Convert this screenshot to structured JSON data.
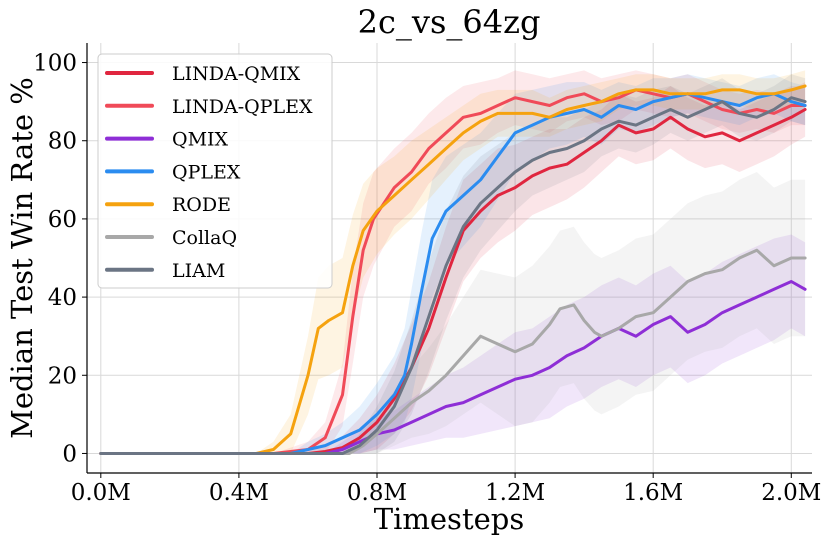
{
  "chart_data": {
    "type": "line",
    "title": "2c_vs_64zg",
    "xlabel": "Timesteps",
    "ylabel": "Median Test Win Rate %",
    "xlim": [
      -0.04,
      2.06
    ],
    "ylim": [
      -5,
      105
    ],
    "xticks": [
      0,
      0.4,
      0.8,
      1.2,
      1.6,
      2.0
    ],
    "xtick_labels": [
      "0.0M",
      "0.4M",
      "0.8M",
      "1.2M",
      "1.6M",
      "2.0M"
    ],
    "yticks": [
      0,
      20,
      40,
      60,
      80,
      100
    ],
    "ytick_labels": [
      "0",
      "20",
      "40",
      "60",
      "80",
      "100"
    ],
    "grid": true,
    "legend_position": "top-left",
    "series": [
      {
        "name": "LINDA-QMIX",
        "color": "#e0263f",
        "x": [
          0,
          0.5,
          0.6,
          0.65,
          0.7,
          0.75,
          0.8,
          0.85,
          0.9,
          0.95,
          1.0,
          1.05,
          1.1,
          1.15,
          1.2,
          1.25,
          1.3,
          1.35,
          1.4,
          1.45,
          1.5,
          1.55,
          1.6,
          1.65,
          1.7,
          1.75,
          1.8,
          1.85,
          1.9,
          1.95,
          2.0,
          2.04
        ],
        "y": [
          0,
          0,
          0,
          0.5,
          1.5,
          4,
          8,
          14,
          22,
          32,
          45,
          57,
          62,
          66,
          68,
          71,
          73,
          74,
          77,
          80,
          84,
          82,
          83,
          86,
          83,
          81,
          82,
          80,
          82,
          84,
          86,
          88
        ],
        "band": [
          0,
          0,
          1,
          2,
          3,
          5,
          7,
          9,
          11,
          12,
          13,
          13,
          12,
          12,
          11,
          10,
          10,
          9,
          9,
          8,
          8,
          8,
          8,
          8,
          8,
          8,
          8,
          8,
          8,
          8,
          7,
          7
        ]
      },
      {
        "name": "LINDA-QPLEX",
        "color": "#f04a58",
        "x": [
          0,
          0.5,
          0.6,
          0.65,
          0.7,
          0.73,
          0.76,
          0.79,
          0.82,
          0.85,
          0.9,
          0.95,
          1.0,
          1.05,
          1.1,
          1.15,
          1.2,
          1.25,
          1.3,
          1.35,
          1.4,
          1.45,
          1.5,
          1.55,
          1.6,
          1.65,
          1.7,
          1.75,
          1.8,
          1.85,
          1.9,
          1.95,
          2.0,
          2.04
        ],
        "y": [
          0,
          0,
          1,
          4,
          15,
          35,
          52,
          60,
          64,
          68,
          72,
          78,
          82,
          86,
          87,
          89,
          91,
          90,
          89,
          91,
          92,
          90,
          91,
          93,
          92,
          91,
          92,
          90,
          88,
          87,
          88,
          87,
          89,
          89
        ],
        "band": [
          0,
          0,
          2,
          4,
          8,
          12,
          12,
          12,
          11,
          10,
          10,
          9,
          9,
          8,
          8,
          7,
          7,
          7,
          7,
          6,
          6,
          6,
          6,
          5,
          5,
          5,
          5,
          5,
          5,
          5,
          5,
          5,
          5,
          5
        ]
      },
      {
        "name": "QMIX",
        "color": "#8e2ed6",
        "x": [
          0,
          0.65,
          0.7,
          0.75,
          0.8,
          0.85,
          0.9,
          0.95,
          1.0,
          1.05,
          1.1,
          1.15,
          1.2,
          1.25,
          1.3,
          1.35,
          1.4,
          1.45,
          1.5,
          1.55,
          1.6,
          1.65,
          1.7,
          1.75,
          1.8,
          1.85,
          1.9,
          1.95,
          2.0,
          2.04
        ],
        "y": [
          0,
          0,
          1,
          3,
          5,
          6,
          8,
          10,
          12,
          13,
          15,
          17,
          19,
          20,
          22,
          25,
          27,
          30,
          32,
          30,
          33,
          35,
          31,
          33,
          36,
          38,
          40,
          42,
          44,
          42
        ],
        "band": [
          0,
          0,
          2,
          3,
          4,
          5,
          6,
          7,
          8,
          9,
          10,
          11,
          12,
          12,
          13,
          13,
          13,
          13,
          13,
          13,
          13,
          13,
          13,
          13,
          13,
          13,
          13,
          13,
          12,
          12
        ]
      },
      {
        "name": "QPLEX",
        "color": "#2b8cf0",
        "x": [
          0,
          0.55,
          0.6,
          0.65,
          0.7,
          0.75,
          0.8,
          0.85,
          0.88,
          0.9,
          0.93,
          0.96,
          1.0,
          1.05,
          1.1,
          1.15,
          1.2,
          1.25,
          1.3,
          1.35,
          1.4,
          1.45,
          1.5,
          1.55,
          1.6,
          1.65,
          1.7,
          1.75,
          1.8,
          1.85,
          1.9,
          1.95,
          2.0,
          2.04
        ],
        "y": [
          0,
          0,
          1,
          2,
          4,
          6,
          10,
          15,
          20,
          28,
          42,
          55,
          62,
          66,
          70,
          76,
          82,
          84,
          86,
          87,
          88,
          86,
          89,
          88,
          90,
          91,
          92,
          91,
          90,
          89,
          91,
          92,
          90,
          89
        ],
        "band": [
          0,
          0,
          2,
          3,
          4,
          6,
          8,
          10,
          12,
          14,
          15,
          15,
          14,
          13,
          12,
          11,
          10,
          9,
          8,
          8,
          7,
          7,
          6,
          6,
          6,
          5,
          5,
          5,
          5,
          5,
          5,
          5,
          5,
          5
        ]
      },
      {
        "name": "RODE",
        "color": "#f5a20f",
        "x": [
          0,
          0.45,
          0.5,
          0.55,
          0.6,
          0.63,
          0.66,
          0.7,
          0.73,
          0.76,
          0.8,
          0.85,
          0.9,
          0.95,
          1.0,
          1.05,
          1.1,
          1.15,
          1.2,
          1.25,
          1.3,
          1.35,
          1.4,
          1.45,
          1.5,
          1.55,
          1.6,
          1.65,
          1.7,
          1.75,
          1.8,
          1.85,
          1.9,
          1.95,
          2.0,
          2.04
        ],
        "y": [
          0,
          0,
          1,
          5,
          20,
          32,
          34,
          36,
          48,
          57,
          62,
          66,
          70,
          74,
          78,
          82,
          85,
          87,
          87,
          87,
          86,
          88,
          89,
          90,
          92,
          93,
          93,
          92,
          92,
          92,
          93,
          93,
          92,
          92,
          93,
          94
        ],
        "band": [
          0,
          0,
          2,
          5,
          10,
          13,
          14,
          14,
          13,
          12,
          11,
          10,
          10,
          9,
          8,
          7,
          7,
          6,
          6,
          6,
          5,
          5,
          5,
          5,
          4,
          4,
          4,
          4,
          4,
          4,
          4,
          4,
          4,
          4,
          4,
          4
        ]
      },
      {
        "name": "CollaQ",
        "color": "#a8a8a8",
        "x": [
          0,
          0.72,
          0.76,
          0.8,
          0.85,
          0.9,
          0.95,
          1.0,
          1.05,
          1.1,
          1.15,
          1.2,
          1.25,
          1.3,
          1.33,
          1.37,
          1.4,
          1.43,
          1.45,
          1.5,
          1.55,
          1.6,
          1.65,
          1.7,
          1.75,
          1.8,
          1.85,
          1.9,
          1.95,
          2.0,
          2.04
        ],
        "y": [
          0,
          0,
          2,
          5,
          9,
          13,
          16,
          20,
          25,
          30,
          28,
          26,
          28,
          33,
          37,
          38,
          34,
          31,
          30,
          32,
          35,
          36,
          40,
          44,
          46,
          47,
          50,
          52,
          48,
          50,
          50
        ],
        "band": [
          0,
          0,
          3,
          5,
          7,
          9,
          11,
          13,
          15,
          17,
          18,
          19,
          20,
          20,
          20,
          20,
          20,
          20,
          20,
          20,
          20,
          20,
          20,
          20,
          20,
          20,
          20,
          20,
          20,
          20,
          20
        ]
      },
      {
        "name": "LIAM",
        "color": "#6b7584",
        "x": [
          0,
          0.7,
          0.75,
          0.8,
          0.85,
          0.9,
          0.95,
          1.0,
          1.05,
          1.1,
          1.15,
          1.2,
          1.25,
          1.3,
          1.35,
          1.4,
          1.45,
          1.5,
          1.55,
          1.6,
          1.65,
          1.7,
          1.75,
          1.8,
          1.85,
          1.9,
          1.95,
          2.0,
          2.04
        ],
        "y": [
          0,
          0,
          2,
          6,
          12,
          22,
          35,
          48,
          58,
          64,
          68,
          72,
          75,
          77,
          78,
          80,
          83,
          85,
          84,
          86,
          88,
          86,
          88,
          90,
          87,
          86,
          88,
          91,
          90
        ],
        "band": [
          0,
          0,
          3,
          6,
          9,
          12,
          14,
          14,
          13,
          12,
          11,
          10,
          9,
          9,
          8,
          8,
          7,
          7,
          7,
          7,
          6,
          6,
          6,
          6,
          6,
          6,
          6,
          6,
          6
        ]
      }
    ]
  }
}
